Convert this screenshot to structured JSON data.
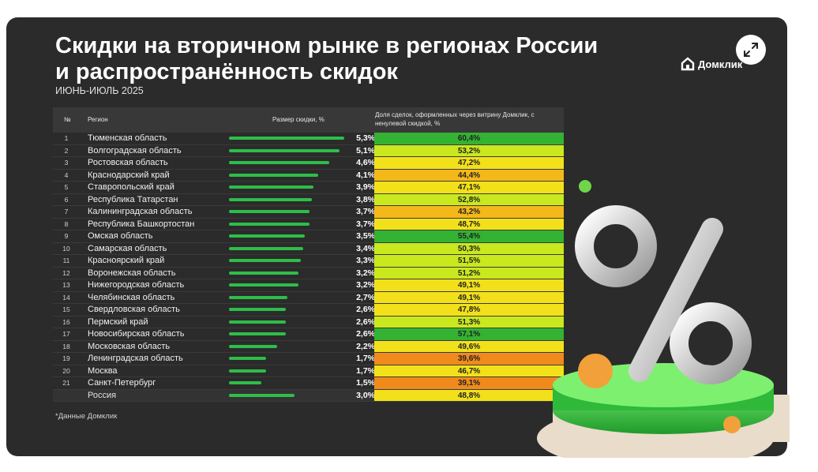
{
  "title_line1": "Скидки на вторичном рынке в регионах России",
  "title_line2": "и распространённость скидок",
  "subtitle": "ИЮНЬ-ИЮЛЬ 2025",
  "brand": "Домклик",
  "footnote": "*Данные Домклик",
  "colors": {
    "bar": "#2ebd49",
    "share_high": "#34b233",
    "share_mid": "#f2e11a",
    "share_low": "#f08a1c"
  },
  "chart_data": {
    "type": "table",
    "columns": {
      "num": "№",
      "region": "Регион",
      "discount": "Размер скидки, %",
      "share": "Доля сделок, оформленных через витрину Домклик, с ненулевой скидкой, %"
    },
    "rows": [
      {
        "num": "1",
        "region": "Тюменская область",
        "discount": 5.3,
        "discount_label": "5,3%",
        "share": 60.4,
        "share_label": "60,4%"
      },
      {
        "num": "2",
        "region": "Волгоградская область",
        "discount": 5.1,
        "discount_label": "5,1%",
        "share": 53.2,
        "share_label": "53,2%"
      },
      {
        "num": "3",
        "region": "Ростовская область",
        "discount": 4.6,
        "discount_label": "4,6%",
        "share": 47.2,
        "share_label": "47,2%"
      },
      {
        "num": "4",
        "region": "Краснодарский край",
        "discount": 4.1,
        "discount_label": "4,1%",
        "share": 44.4,
        "share_label": "44,4%"
      },
      {
        "num": "5",
        "region": "Ставропольский край",
        "discount": 3.9,
        "discount_label": "3,9%",
        "share": 47.1,
        "share_label": "47,1%"
      },
      {
        "num": "6",
        "region": "Республика Татарстан",
        "discount": 3.8,
        "discount_label": "3,8%",
        "share": 52.8,
        "share_label": "52,8%"
      },
      {
        "num": "7",
        "region": "Калининградская область",
        "discount": 3.7,
        "discount_label": "3,7%",
        "share": 43.2,
        "share_label": "43,2%"
      },
      {
        "num": "8",
        "region": "Республика Башкортостан",
        "discount": 3.7,
        "discount_label": "3,7%",
        "share": 48.7,
        "share_label": "48,7%"
      },
      {
        "num": "9",
        "region": "Омская область",
        "discount": 3.5,
        "discount_label": "3,5%",
        "share": 55.4,
        "share_label": "55,4%"
      },
      {
        "num": "10",
        "region": "Самарская область",
        "discount": 3.4,
        "discount_label": "3,4%",
        "share": 50.3,
        "share_label": "50,3%"
      },
      {
        "num": "11",
        "region": "Красноярский край",
        "discount": 3.3,
        "discount_label": "3,3%",
        "share": 51.5,
        "share_label": "51,5%"
      },
      {
        "num": "12",
        "region": "Воронежская область",
        "discount": 3.2,
        "discount_label": "3,2%",
        "share": 51.2,
        "share_label": "51,2%"
      },
      {
        "num": "13",
        "region": "Нижегородская область",
        "discount": 3.2,
        "discount_label": "3,2%",
        "share": 49.1,
        "share_label": "49,1%"
      },
      {
        "num": "14",
        "region": "Челябинская область",
        "discount": 2.7,
        "discount_label": "2,7%",
        "share": 49.1,
        "share_label": "49,1%"
      },
      {
        "num": "15",
        "region": "Свердловская область",
        "discount": 2.6,
        "discount_label": "2,6%",
        "share": 47.8,
        "share_label": "47,8%"
      },
      {
        "num": "16",
        "region": "Пермский край",
        "discount": 2.6,
        "discount_label": "2,6%",
        "share": 51.3,
        "share_label": "51,3%"
      },
      {
        "num": "17",
        "region": "Новосибирская область",
        "discount": 2.6,
        "discount_label": "2,6%",
        "share": 57.1,
        "share_label": "57,1%"
      },
      {
        "num": "18",
        "region": "Московская область",
        "discount": 2.2,
        "discount_label": "2,2%",
        "share": 49.6,
        "share_label": "49,6%"
      },
      {
        "num": "19",
        "region": "Ленинградская область",
        "discount": 1.7,
        "discount_label": "1,7%",
        "share": 39.6,
        "share_label": "39,6%"
      },
      {
        "num": "20",
        "region": "Москва",
        "discount": 1.7,
        "discount_label": "1,7%",
        "share": 46.7,
        "share_label": "46,7%"
      },
      {
        "num": "21",
        "region": "Санкт-Петербург",
        "discount": 1.5,
        "discount_label": "1,5%",
        "share": 39.1,
        "share_label": "39,1%"
      },
      {
        "num": "",
        "region": "Россия",
        "discount": 3.0,
        "discount_label": "3,0%",
        "share": 48.8,
        "share_label": "48,8%"
      }
    ],
    "discount_max": 5.3
  }
}
